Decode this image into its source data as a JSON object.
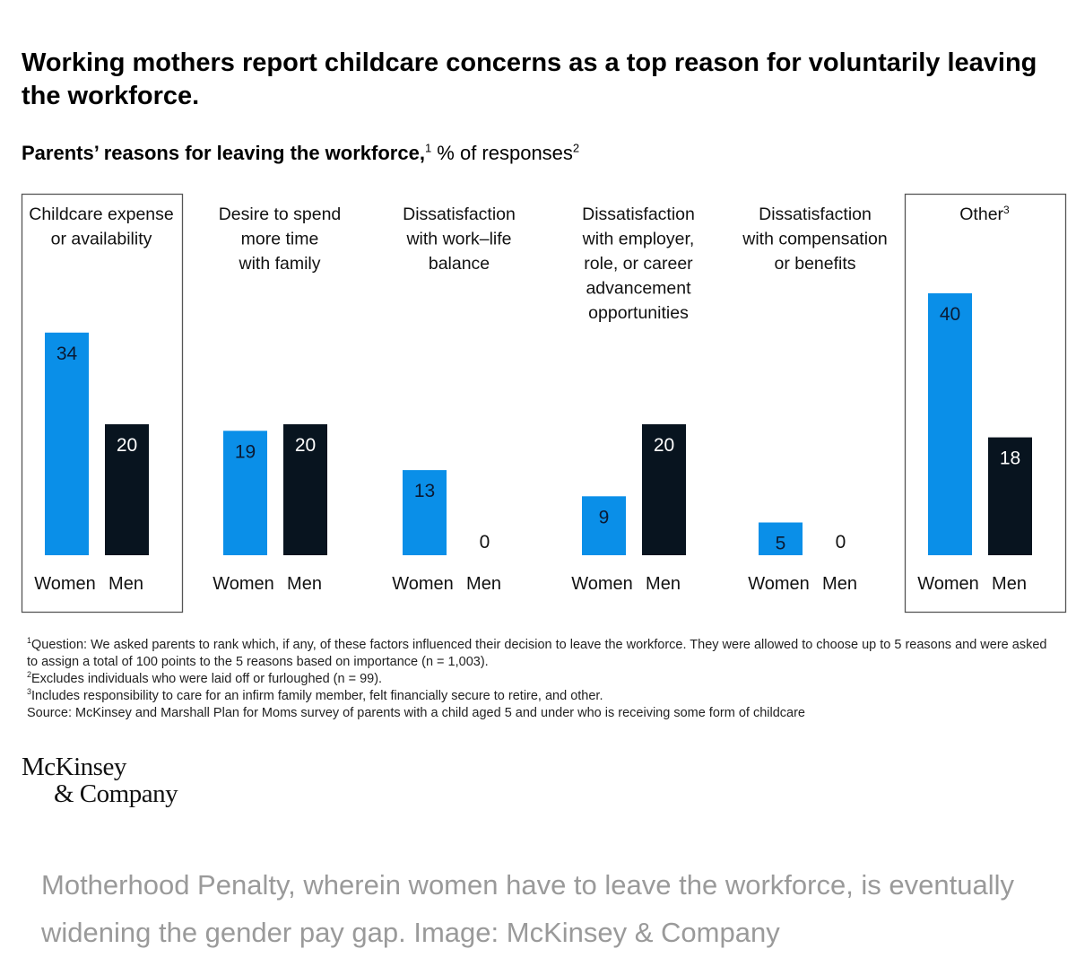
{
  "title": "Working mothers report childcare concerns as a top reason for voluntarily leaving the workforce.",
  "subtitle": {
    "bold": "Parents’ reasons for leaving the workforce,",
    "bold_sup": "1",
    "normal": " % of responses",
    "normal_sup": "2"
  },
  "colors": {
    "women": "#0a8fe8",
    "men": "#08141f",
    "box": "#555555"
  },
  "chart_data": {
    "type": "bar",
    "series": [
      {
        "name": "Women",
        "values": [
          34,
          19,
          13,
          9,
          5,
          40
        ]
      },
      {
        "name": "Men",
        "values": [
          20,
          20,
          0,
          20,
          0,
          18
        ]
      }
    ],
    "categories": [
      {
        "lines": [
          "Childcare expense",
          "or availability"
        ],
        "sup": "",
        "boxed": true
      },
      {
        "lines": [
          "Desire to spend",
          "more time",
          "with family"
        ],
        "sup": "",
        "boxed": false
      },
      {
        "lines": [
          "Dissatisfaction",
          "with work–life",
          "balance"
        ],
        "sup": "",
        "boxed": false
      },
      {
        "lines": [
          "Dissatisfaction",
          "with employer,",
          "role, or career",
          "advancement",
          "opportunities"
        ],
        "sup": "",
        "boxed": false
      },
      {
        "lines": [
          "Dissatisfaction",
          "with compensation",
          "or benefits"
        ],
        "sup": "",
        "boxed": false
      },
      {
        "lines": [
          "Other"
        ],
        "sup": "3",
        "boxed": true
      }
    ],
    "bar_labels": [
      "Women",
      "Men"
    ],
    "ylim": [
      0,
      40
    ]
  },
  "footnotes": [
    {
      "sup": "1",
      "text": "Question: We asked parents to rank which, if any, of these factors influenced their decision to leave the workforce. They were allowed to choose up to 5 reasons and were asked to assign a total of 100 points to the 5 reasons based on importance (n = 1,003)."
    },
    {
      "sup": "2",
      "text": "Excludes individuals who were laid off or furloughed (n = 99)."
    },
    {
      "sup": "3",
      "text": "Includes responsibility to care for an infirm family member, felt financially secure to retire, and other."
    },
    {
      "sup": "",
      "text": " Source: McKinsey and Marshall Plan for Moms survey of parents with a child aged 5 and under who is receiving some form of childcare"
    }
  ],
  "logo": {
    "line1": "McKinsey",
    "line2": "& Company"
  },
  "caption": "Motherhood Penalty, wherein women have to leave the workforce, is eventually widening the gender pay gap. Image: McKinsey & Company"
}
